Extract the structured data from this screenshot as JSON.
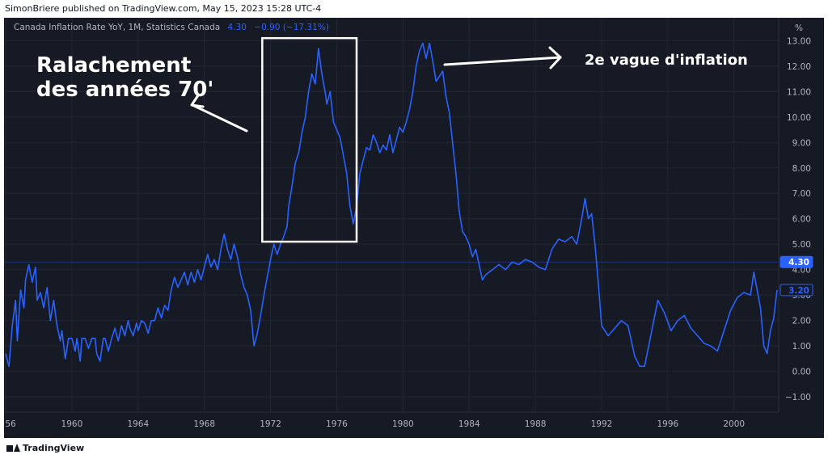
{
  "header": {
    "publisher": "SimonBriere published on TradingView.com, May 15, 2023 15:28 UTC-4"
  },
  "legend": {
    "name": "Canada Inflation Rate YoY, 1M, Statistics Canada",
    "value": "4.30",
    "change": "−0.90 (−17.31%)"
  },
  "annotations": {
    "left_line1": "Ralachement",
    "left_line2": "des années 70'",
    "right": "2e vague d'inflation"
  },
  "footer": {
    "brand": "TradingView"
  },
  "colors": {
    "background": "#161a25",
    "line": "#2962ff",
    "grid": "#232632",
    "text": "#b2b5be",
    "annotation": "#ffffff"
  },
  "chart_data": {
    "type": "line",
    "title": "",
    "xlabel": "",
    "ylabel": "%",
    "x_ticks": [
      "56",
      "1960",
      "1964",
      "1968",
      "1972",
      "1976",
      "1980",
      "1984",
      "1988",
      "1992",
      "1996",
      "2000"
    ],
    "y_ticks": [
      "−1.00",
      "0.00",
      "1.00",
      "2.00",
      "3.00",
      "4.00",
      "5.00",
      "6.00",
      "7.00",
      "8.00",
      "9.00",
      "10.00",
      "11.00",
      "12.00",
      "13.00"
    ],
    "ylim": [
      -1.6,
      13.9
    ],
    "xlim": [
      1955.9,
      2002.7
    ],
    "last_value_label": "4.30",
    "secondary_value_label": "3.20",
    "highlight_box": {
      "x_from": 1971.5,
      "x_to": 1977.2,
      "y_from": 5.1,
      "y_to": 13.1
    },
    "series": [
      {
        "values": [
          [
            1956.0,
            0.7
          ],
          [
            1956.2,
            0.2
          ],
          [
            1956.4,
            1.8
          ],
          [
            1956.6,
            2.8
          ],
          [
            1956.7,
            1.2
          ],
          [
            1956.9,
            3.2
          ],
          [
            1957.1,
            2.5
          ],
          [
            1957.2,
            3.6
          ],
          [
            1957.4,
            4.2
          ],
          [
            1957.6,
            3.5
          ],
          [
            1957.8,
            4.1
          ],
          [
            1957.9,
            2.8
          ],
          [
            1958.1,
            3.1
          ],
          [
            1958.3,
            2.5
          ],
          [
            1958.5,
            3.3
          ],
          [
            1958.7,
            2.0
          ],
          [
            1958.9,
            2.8
          ],
          [
            1959.1,
            1.8
          ],
          [
            1959.3,
            1.2
          ],
          [
            1959.4,
            1.6
          ],
          [
            1959.6,
            0.5
          ],
          [
            1959.8,
            1.3
          ],
          [
            1960.0,
            1.3
          ],
          [
            1960.2,
            0.8
          ],
          [
            1960.3,
            1.3
          ],
          [
            1960.5,
            0.4
          ],
          [
            1960.6,
            1.3
          ],
          [
            1960.8,
            1.3
          ],
          [
            1961.0,
            0.9
          ],
          [
            1961.2,
            1.3
          ],
          [
            1961.4,
            1.3
          ],
          [
            1961.5,
            0.7
          ],
          [
            1961.7,
            0.4
          ],
          [
            1961.9,
            1.3
          ],
          [
            1962.0,
            1.3
          ],
          [
            1962.2,
            0.8
          ],
          [
            1962.4,
            1.3
          ],
          [
            1962.6,
            1.7
          ],
          [
            1962.8,
            1.2
          ],
          [
            1963.0,
            1.8
          ],
          [
            1963.2,
            1.4
          ],
          [
            1963.4,
            2.0
          ],
          [
            1963.5,
            1.7
          ],
          [
            1963.7,
            1.4
          ],
          [
            1963.9,
            1.9
          ],
          [
            1964.0,
            1.6
          ],
          [
            1964.2,
            2.0
          ],
          [
            1964.4,
            1.9
          ],
          [
            1964.6,
            1.5
          ],
          [
            1964.8,
            2.0
          ],
          [
            1965.0,
            2.0
          ],
          [
            1965.2,
            2.5
          ],
          [
            1965.4,
            2.1
          ],
          [
            1965.6,
            2.6
          ],
          [
            1965.8,
            2.4
          ],
          [
            1966.0,
            3.2
          ],
          [
            1966.2,
            3.7
          ],
          [
            1966.4,
            3.3
          ],
          [
            1966.6,
            3.6
          ],
          [
            1966.8,
            3.9
          ],
          [
            1967.0,
            3.4
          ],
          [
            1967.2,
            3.9
          ],
          [
            1967.4,
            3.5
          ],
          [
            1967.6,
            4.0
          ],
          [
            1967.8,
            3.6
          ],
          [
            1968.0,
            4.1
          ],
          [
            1968.2,
            4.6
          ],
          [
            1968.4,
            4.1
          ],
          [
            1968.6,
            4.4
          ],
          [
            1968.8,
            4.0
          ],
          [
            1969.0,
            4.8
          ],
          [
            1969.2,
            5.4
          ],
          [
            1969.4,
            4.8
          ],
          [
            1969.6,
            4.4
          ],
          [
            1969.8,
            5.0
          ],
          [
            1970.0,
            4.5
          ],
          [
            1970.2,
            3.8
          ],
          [
            1970.4,
            3.3
          ],
          [
            1970.6,
            3.0
          ],
          [
            1970.8,
            2.4
          ],
          [
            1971.0,
            1.0
          ],
          [
            1971.2,
            1.5
          ],
          [
            1971.4,
            2.2
          ],
          [
            1971.6,
            3.0
          ],
          [
            1971.8,
            3.7
          ],
          [
            1972.0,
            4.4
          ],
          [
            1972.2,
            5.0
          ],
          [
            1972.4,
            4.6
          ],
          [
            1972.6,
            5.0
          ],
          [
            1972.8,
            5.3
          ],
          [
            1973.0,
            5.7
          ],
          [
            1973.1,
            6.5
          ],
          [
            1973.3,
            7.3
          ],
          [
            1973.5,
            8.2
          ],
          [
            1973.7,
            8.6
          ],
          [
            1973.9,
            9.4
          ],
          [
            1974.1,
            10.0
          ],
          [
            1974.3,
            11.0
          ],
          [
            1974.5,
            11.7
          ],
          [
            1974.7,
            11.3
          ],
          [
            1974.9,
            12.7
          ],
          [
            1975.1,
            11.7
          ],
          [
            1975.3,
            11.0
          ],
          [
            1975.4,
            10.5
          ],
          [
            1975.6,
            11.0
          ],
          [
            1975.8,
            9.8
          ],
          [
            1976.0,
            9.5
          ],
          [
            1976.2,
            9.2
          ],
          [
            1976.4,
            8.5
          ],
          [
            1976.6,
            7.8
          ],
          [
            1976.8,
            6.5
          ],
          [
            1977.0,
            5.8
          ],
          [
            1977.2,
            6.5
          ],
          [
            1977.4,
            7.8
          ],
          [
            1977.6,
            8.3
          ],
          [
            1977.8,
            8.8
          ],
          [
            1978.0,
            8.7
          ],
          [
            1978.2,
            9.3
          ],
          [
            1978.4,
            9.0
          ],
          [
            1978.6,
            8.6
          ],
          [
            1978.8,
            8.9
          ],
          [
            1979.0,
            8.7
          ],
          [
            1979.2,
            9.3
          ],
          [
            1979.4,
            8.6
          ],
          [
            1979.6,
            9.1
          ],
          [
            1979.8,
            9.6
          ],
          [
            1980.0,
            9.4
          ],
          [
            1980.2,
            9.8
          ],
          [
            1980.4,
            10.3
          ],
          [
            1980.6,
            11.0
          ],
          [
            1980.8,
            12.0
          ],
          [
            1981.0,
            12.6
          ],
          [
            1981.2,
            12.9
          ],
          [
            1981.4,
            12.3
          ],
          [
            1981.6,
            12.9
          ],
          [
            1981.8,
            12.2
          ],
          [
            1982.0,
            11.4
          ],
          [
            1982.2,
            11.6
          ],
          [
            1982.4,
            11.8
          ],
          [
            1982.6,
            10.8
          ],
          [
            1982.8,
            10.2
          ],
          [
            1983.0,
            9.0
          ],
          [
            1983.2,
            7.8
          ],
          [
            1983.4,
            6.3
          ],
          [
            1983.6,
            5.5
          ],
          [
            1983.8,
            5.3
          ],
          [
            1984.0,
            5.0
          ],
          [
            1984.2,
            4.5
          ],
          [
            1984.4,
            4.8
          ],
          [
            1984.6,
            4.2
          ],
          [
            1984.8,
            3.6
          ],
          [
            1985.0,
            3.8
          ],
          [
            1985.4,
            4.0
          ],
          [
            1985.8,
            4.2
          ],
          [
            1986.2,
            4.0
          ],
          [
            1986.6,
            4.3
          ],
          [
            1987.0,
            4.2
          ],
          [
            1987.4,
            4.4
          ],
          [
            1987.8,
            4.3
          ],
          [
            1988.2,
            4.1
          ],
          [
            1988.6,
            4.0
          ],
          [
            1989.0,
            4.8
          ],
          [
            1989.4,
            5.2
          ],
          [
            1989.8,
            5.1
          ],
          [
            1990.2,
            5.3
          ],
          [
            1990.5,
            5.0
          ],
          [
            1990.8,
            6.0
          ],
          [
            1991.0,
            6.8
          ],
          [
            1991.2,
            6.0
          ],
          [
            1991.4,
            6.2
          ],
          [
            1991.6,
            5.0
          ],
          [
            1991.8,
            3.5
          ],
          [
            1992.0,
            1.8
          ],
          [
            1992.4,
            1.4
          ],
          [
            1992.8,
            1.7
          ],
          [
            1993.2,
            2.0
          ],
          [
            1993.6,
            1.8
          ],
          [
            1994.0,
            0.6
          ],
          [
            1994.3,
            0.2
          ],
          [
            1994.6,
            0.2
          ],
          [
            1995.0,
            1.5
          ],
          [
            1995.4,
            2.8
          ],
          [
            1995.8,
            2.3
          ],
          [
            1996.2,
            1.6
          ],
          [
            1996.6,
            2.0
          ],
          [
            1997.0,
            2.2
          ],
          [
            1997.4,
            1.7
          ],
          [
            1997.8,
            1.4
          ],
          [
            1998.2,
            1.1
          ],
          [
            1998.6,
            1.0
          ],
          [
            1999.0,
            0.8
          ],
          [
            1999.4,
            1.6
          ],
          [
            1999.8,
            2.4
          ],
          [
            2000.2,
            2.9
          ],
          [
            2000.6,
            3.1
          ],
          [
            2001.0,
            3.0
          ],
          [
            2001.2,
            3.9
          ],
          [
            2001.4,
            3.2
          ],
          [
            2001.6,
            2.5
          ],
          [
            2001.8,
            1.0
          ],
          [
            2002.0,
            0.7
          ],
          [
            2002.2,
            1.6
          ],
          [
            2002.4,
            2.1
          ],
          [
            2002.6,
            3.2
          ]
        ]
      }
    ]
  }
}
